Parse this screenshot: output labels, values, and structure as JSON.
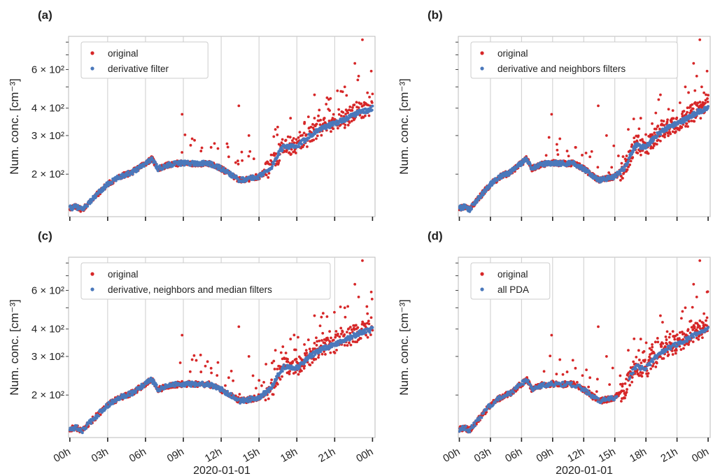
{
  "figure": {
    "x_date_label": "2020-01-01",
    "y_axis_label": "Num. conc. [cm⁻³]",
    "colors": {
      "original": "#d62728",
      "filtered": "#4a78bb",
      "grid": "#cccccc",
      "frame": "#bbbbbb"
    }
  },
  "chart_data": [
    {
      "type": "scatter",
      "panel_label": "(a)",
      "ylabel": "Num. conc. [cm⁻³]",
      "xlabel": "",
      "xlim": [
        -0.1,
        24.2
      ],
      "ylim": [
        128,
        850
      ],
      "yscale": "log",
      "grid": "x",
      "legend_position": "top-left",
      "legend": [
        "original",
        "derivative filter"
      ],
      "yticks": [
        {
          "value": 200,
          "label": "2 × 10²"
        },
        {
          "value": 300,
          "label": "3 × 10²"
        },
        {
          "value": 400,
          "label": "4 × 10²"
        },
        {
          "value": 600,
          "label": "6 × 10²"
        }
      ],
      "xticks": [],
      "series": [
        {
          "name": "original",
          "color": "#d62728",
          "x": [
            0.0,
            0.5,
            1.0,
            2.0,
            3.0,
            4.0,
            5.0,
            6.0,
            6.5,
            7.0,
            8.0,
            9.0,
            10.0,
            11.0,
            12.0,
            13.0,
            13.5,
            14.0,
            15.0,
            16.0,
            16.5,
            17.0,
            18.0,
            19.0,
            20.0,
            21.0,
            22.0,
            23.0,
            23.5,
            24.0,
            8.9,
            9.7,
            10.4,
            11.2,
            12.6,
            13.4,
            14.2,
            16.3,
            17.5,
            18.6,
            19.4,
            20.6,
            21.8,
            22.6,
            22.9,
            23.2,
            23.6,
            23.9
          ],
          "y": [
            140,
            142,
            138,
            158,
            180,
            195,
            205,
            225,
            235,
            212,
            222,
            225,
            224,
            224,
            212,
            195,
            188,
            190,
            195,
            215,
            245,
            275,
            265,
            300,
            330,
            345,
            365,
            395,
            400,
            420,
            375,
            290,
            255,
            265,
            240,
            410,
            300,
            320,
            360,
            340,
            460,
            390,
            500,
            640,
            560,
            820,
            470,
            590
          ]
        },
        {
          "name": "derivative filter",
          "color": "#4a78bb",
          "x": [
            0.0,
            0.5,
            1.0,
            2.0,
            3.0,
            4.0,
            5.0,
            6.0,
            6.5,
            7.0,
            8.0,
            9.0,
            10.0,
            11.0,
            12.0,
            13.0,
            13.5,
            14.0,
            15.0,
            16.0,
            16.5,
            17.0,
            18.0,
            19.0,
            20.0,
            21.0,
            22.0,
            23.0,
            23.5,
            24.0
          ],
          "y": [
            140,
            142,
            138,
            158,
            180,
            195,
            205,
            225,
            235,
            212,
            222,
            225,
            224,
            224,
            212,
            195,
            188,
            190,
            195,
            215,
            245,
            270,
            265,
            300,
            325,
            340,
            360,
            385,
            390,
            400
          ]
        }
      ]
    },
    {
      "type": "scatter",
      "panel_label": "(b)",
      "ylabel": "Num. conc. [cm⁻³]",
      "xlabel": "",
      "xlim": [
        -0.1,
        24.2
      ],
      "ylim": [
        128,
        850
      ],
      "yscale": "log",
      "grid": "x",
      "legend_position": "top-left",
      "legend": [
        "original",
        "derivative and neighbors filters"
      ],
      "yticks": [],
      "xticks": [],
      "series": [
        {
          "name": "original",
          "color": "#d62728",
          "x": [
            0.0,
            0.5,
            1.0,
            2.0,
            3.0,
            4.0,
            5.0,
            6.0,
            6.5,
            7.0,
            8.0,
            9.0,
            10.0,
            11.0,
            12.0,
            13.0,
            13.5,
            14.0,
            15.0,
            16.0,
            16.5,
            17.0,
            18.0,
            19.0,
            20.0,
            21.0,
            22.0,
            23.0,
            23.5,
            24.0,
            8.9,
            9.7,
            10.4,
            11.2,
            12.6,
            13.4,
            14.2,
            16.3,
            17.5,
            18.6,
            19.4,
            20.6,
            21.8,
            22.6,
            22.9,
            23.2,
            23.6,
            23.9
          ],
          "y": [
            140,
            142,
            138,
            158,
            180,
            195,
            205,
            225,
            235,
            212,
            222,
            225,
            224,
            224,
            212,
            195,
            188,
            190,
            195,
            215,
            245,
            275,
            265,
            300,
            330,
            345,
            365,
            395,
            400,
            420,
            375,
            290,
            255,
            265,
            240,
            410,
            300,
            320,
            360,
            340,
            460,
            390,
            500,
            640,
            560,
            820,
            470,
            590
          ]
        },
        {
          "name": "derivative and neighbors filters",
          "color": "#4a78bb",
          "x": [
            0.0,
            0.5,
            1.0,
            2.0,
            3.0,
            4.0,
            5.0,
            6.0,
            6.5,
            7.0,
            8.0,
            9.0,
            10.0,
            11.0,
            12.0,
            13.0,
            13.5,
            14.0,
            15.0,
            16.0,
            16.5,
            17.0,
            18.0,
            19.0,
            20.0,
            21.0,
            22.0,
            23.0,
            23.5,
            24.0
          ],
          "y": [
            140,
            142,
            138,
            158,
            180,
            195,
            205,
            225,
            235,
            212,
            222,
            225,
            224,
            224,
            212,
            195,
            188,
            190,
            195,
            215,
            245,
            270,
            265,
            300,
            325,
            340,
            360,
            385,
            390,
            400
          ]
        }
      ]
    },
    {
      "type": "scatter",
      "panel_label": "(c)",
      "ylabel": "Num. conc. [cm⁻³]",
      "xlabel": "2020-01-01",
      "xlim": [
        -0.1,
        24.2
      ],
      "ylim": [
        128,
        850
      ],
      "yscale": "log",
      "grid": "x",
      "legend_position": "top-left",
      "legend": [
        "original",
        "derivative, neighbors and median filters"
      ],
      "yticks": [
        {
          "value": 200,
          "label": "2 × 10²"
        },
        {
          "value": 300,
          "label": "3 × 10²"
        },
        {
          "value": 400,
          "label": "4 × 10²"
        },
        {
          "value": 600,
          "label": "6 × 10²"
        }
      ],
      "xticks": [
        "00h",
        "03h",
        "06h",
        "09h",
        "12h",
        "15h",
        "18h",
        "21h",
        "00h"
      ],
      "series": [
        {
          "name": "original",
          "color": "#d62728",
          "x": [
            0.0,
            0.5,
            1.0,
            2.0,
            3.0,
            4.0,
            5.0,
            6.0,
            6.5,
            7.0,
            8.0,
            9.0,
            10.0,
            11.0,
            12.0,
            13.0,
            13.5,
            14.0,
            15.0,
            16.0,
            16.5,
            17.0,
            18.0,
            19.0,
            20.0,
            21.0,
            22.0,
            23.0,
            23.5,
            24.0,
            8.9,
            9.7,
            10.4,
            11.2,
            12.6,
            13.4,
            14.2,
            16.3,
            17.5,
            18.6,
            19.4,
            20.6,
            21.8,
            22.6,
            22.9,
            23.2,
            23.6,
            23.9
          ],
          "y": [
            140,
            142,
            138,
            158,
            180,
            195,
            205,
            225,
            235,
            212,
            222,
            225,
            224,
            224,
            212,
            195,
            188,
            190,
            195,
            215,
            245,
            275,
            265,
            300,
            330,
            345,
            365,
            395,
            400,
            420,
            375,
            290,
            255,
            265,
            240,
            410,
            300,
            320,
            360,
            340,
            460,
            390,
            500,
            640,
            560,
            820,
            470,
            590
          ]
        },
        {
          "name": "derivative, neighbors and median filters",
          "color": "#4a78bb",
          "x": [
            0.0,
            0.5,
            1.0,
            2.0,
            3.0,
            4.0,
            5.0,
            6.0,
            6.5,
            7.0,
            8.0,
            9.0,
            10.0,
            11.0,
            12.0,
            13.0,
            13.5,
            14.0,
            15.0,
            16.0,
            16.5,
            17.0,
            18.0,
            19.0,
            20.0,
            21.0,
            22.0,
            23.0,
            23.5,
            24.0
          ],
          "y": [
            140,
            142,
            138,
            158,
            180,
            195,
            205,
            225,
            235,
            212,
            222,
            225,
            224,
            224,
            212,
            195,
            188,
            190,
            195,
            215,
            245,
            270,
            265,
            300,
            325,
            340,
            360,
            385,
            390,
            400
          ]
        }
      ]
    },
    {
      "type": "scatter",
      "panel_label": "(d)",
      "ylabel": "Num. conc. [cm⁻³]",
      "xlabel": "2020-01-01",
      "xlim": [
        -0.1,
        24.2
      ],
      "ylim": [
        128,
        850
      ],
      "yscale": "log",
      "grid": "x",
      "legend_position": "top-left",
      "legend": [
        "original",
        "all PDA"
      ],
      "yticks": [],
      "xticks": [
        "00h",
        "03h",
        "06h",
        "09h",
        "12h",
        "15h",
        "18h",
        "21h",
        "00h"
      ],
      "series": [
        {
          "name": "original",
          "color": "#d62728",
          "x": [
            0.0,
            0.5,
            1.0,
            2.0,
            3.0,
            4.0,
            5.0,
            6.0,
            6.5,
            7.0,
            8.0,
            9.0,
            10.0,
            11.0,
            12.0,
            13.0,
            13.5,
            14.0,
            15.0,
            16.0,
            16.5,
            17.0,
            18.0,
            19.0,
            20.0,
            21.0,
            22.0,
            23.0,
            23.5,
            24.0,
            8.9,
            9.7,
            10.4,
            11.2,
            12.6,
            13.4,
            14.2,
            16.3,
            17.5,
            18.6,
            19.4,
            20.6,
            21.8,
            22.6,
            22.9,
            23.2,
            23.6,
            23.9
          ],
          "y": [
            140,
            142,
            138,
            158,
            180,
            195,
            205,
            225,
            235,
            212,
            222,
            225,
            224,
            224,
            212,
            195,
            188,
            190,
            195,
            215,
            245,
            275,
            265,
            300,
            330,
            345,
            365,
            395,
            400,
            420,
            375,
            290,
            255,
            265,
            240,
            410,
            300,
            320,
            360,
            340,
            460,
            390,
            500,
            640,
            560,
            820,
            470,
            590
          ]
        },
        {
          "name": "all PDA",
          "color": "#4a78bb",
          "x": [
            0.0,
            0.5,
            1.0,
            2.0,
            3.0,
            4.0,
            5.0,
            6.0,
            6.5,
            7.0,
            8.0,
            9.0,
            10.0,
            11.0,
            12.0,
            13.0,
            13.5,
            14.0,
            15.0,
            16.0,
            16.5,
            17.0,
            18.0,
            19.0,
            20.0,
            21.0,
            22.0,
            23.0,
            23.5,
            24.0
          ],
          "y": [
            140,
            142,
            138,
            158,
            180,
            195,
            205,
            225,
            235,
            212,
            222,
            225,
            224,
            224,
            212,
            195,
            188,
            190,
            195,
            215,
            245,
            270,
            265,
            300,
            325,
            340,
            360,
            385,
            390,
            400
          ]
        }
      ]
    }
  ]
}
